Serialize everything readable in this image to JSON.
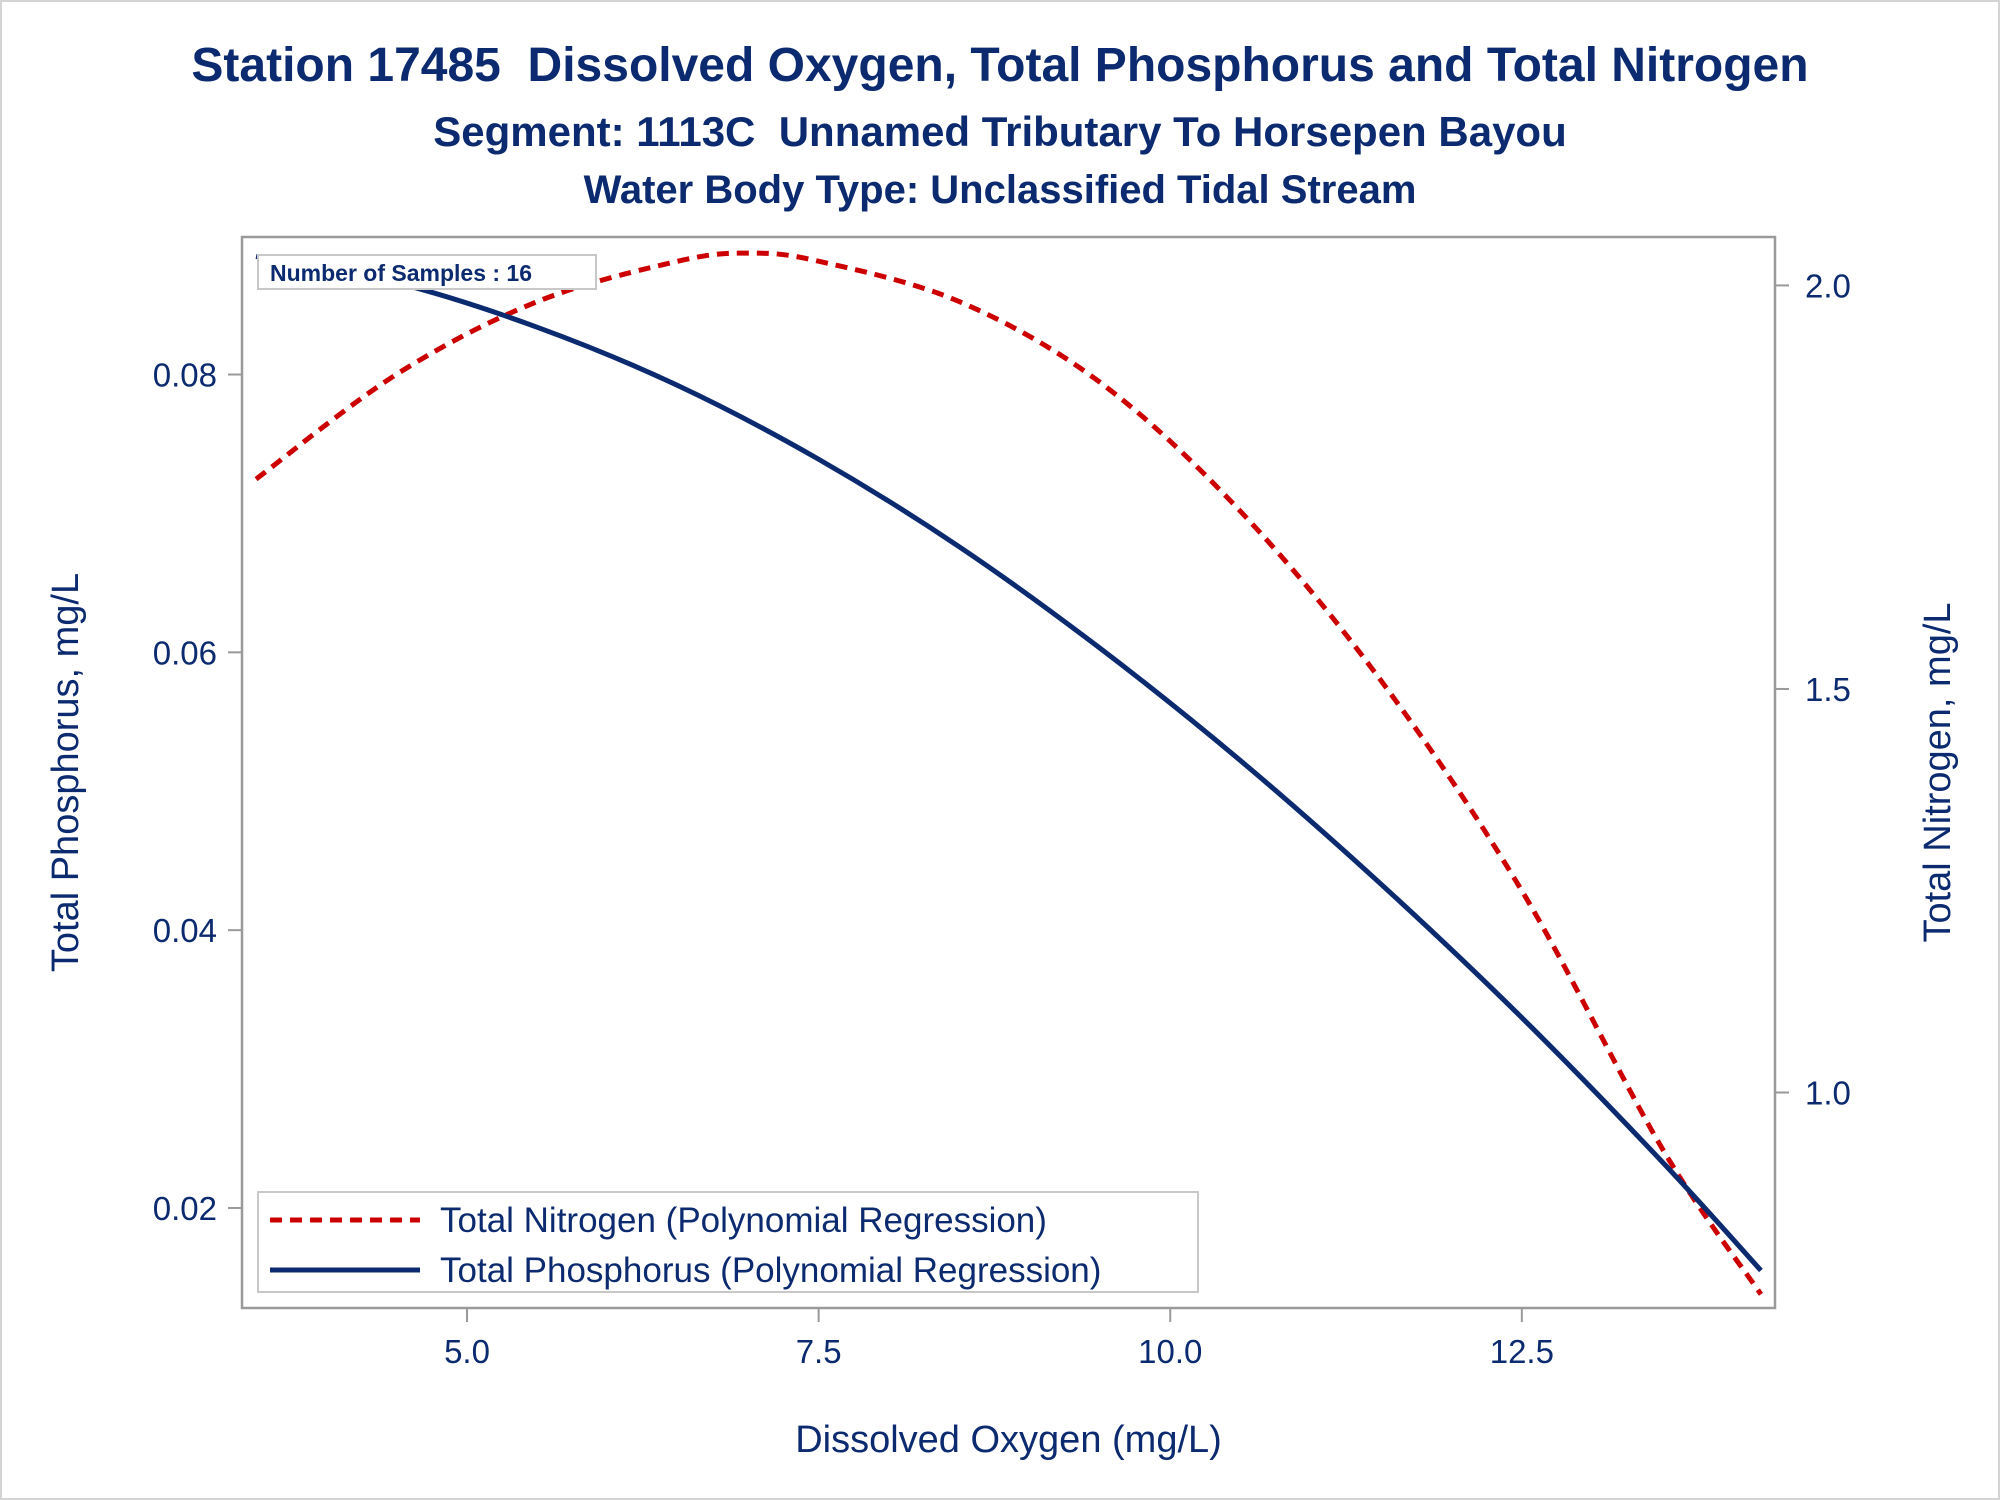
{
  "titles": {
    "line1": "Station 17485  Dissolved Oxygen, Total Phosphorus and Total Nitrogen",
    "line2": "Segment: 1113C  Unnamed Tributary To Horsepen Bayou",
    "line3": "Water Body Type: Unclassified Tidal Stream"
  },
  "inset": "Number of Samples : 16",
  "colors": {
    "text": "#0b2a6f",
    "nitrogen": "#cc0000",
    "phosphorus": "#0b2a6f",
    "frame": "#9a9a9a"
  },
  "chart_data": {
    "type": "line",
    "title": "Station 17485  Dissolved Oxygen, Total Phosphorus and Total Nitrogen",
    "xlabel": "Dissolved Oxygen (mg/L)",
    "ylabel": "Total Phosphorus, mg/L",
    "y2label": "Total Nitrogen, mg/L",
    "xlim": [
      3.4,
      14.3
    ],
    "ylim": [
      0.0128,
      0.0899
    ],
    "y2lim": [
      0.733,
      2.06
    ],
    "x_ticks": [
      "5.0",
      "7.5",
      "10.0",
      "12.5"
    ],
    "y_ticks": [
      "0.02",
      "0.04",
      "0.06",
      "0.08"
    ],
    "y2_ticks": [
      "1.0",
      "1.5",
      "2.0"
    ],
    "grid": false,
    "legend_position": "bottom-left",
    "series": [
      {
        "name": "Total Nitrogen (Polynomial Regression)",
        "axis": "right",
        "style": "dashed",
        "color": "#cc0000",
        "x": [
          3.5,
          4.5,
          5.5,
          6.5,
          7.0,
          7.5,
          8.5,
          9.5,
          10.5,
          11.5,
          12.5,
          13.5,
          14.2
        ],
        "y": [
          1.76,
          1.89,
          1.98,
          2.03,
          2.04,
          2.03,
          1.98,
          1.88,
          1.72,
          1.51,
          1.25,
          0.93,
          0.75
        ]
      },
      {
        "name": "Total Phosphorus (Polynomial Regression)",
        "axis": "left",
        "style": "solid",
        "color": "#0b2a6f",
        "x": [
          3.5,
          4.5,
          5.5,
          6.5,
          7.5,
          8.5,
          9.5,
          10.5,
          11.5,
          12.5,
          13.5,
          14.2
        ],
        "y": [
          0.0885,
          0.0866,
          0.0834,
          0.0792,
          0.0739,
          0.0676,
          0.0603,
          0.0522,
          0.0433,
          0.0337,
          0.0233,
          0.0155
        ]
      }
    ]
  }
}
